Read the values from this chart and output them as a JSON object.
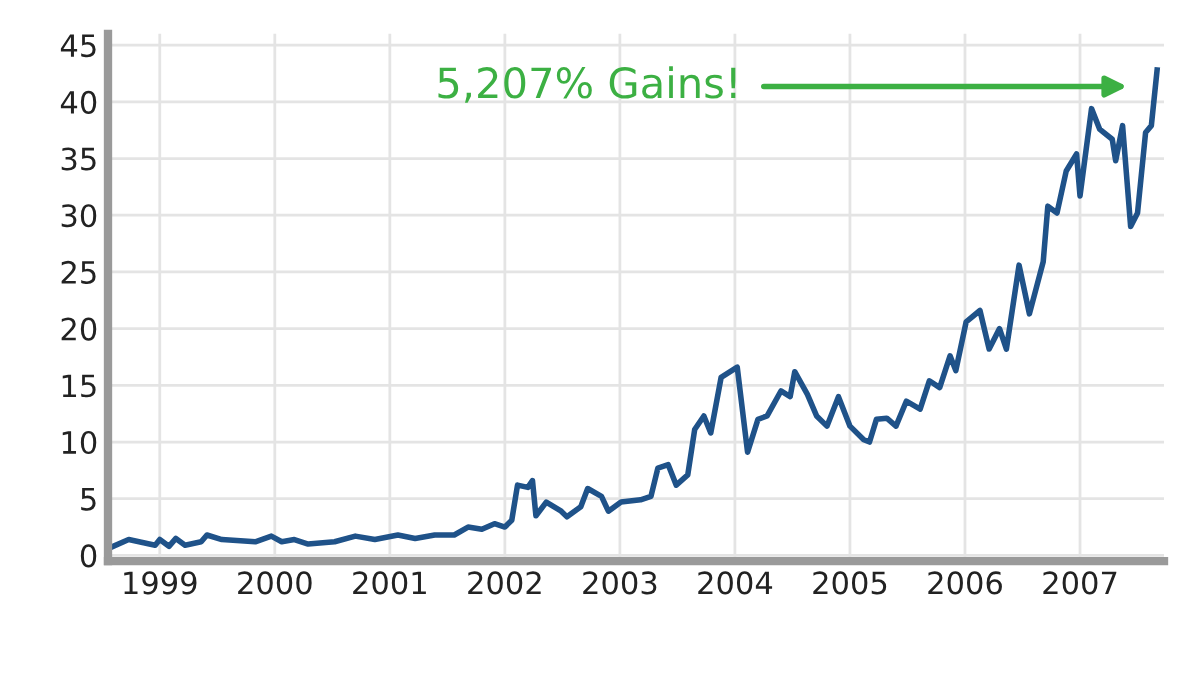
{
  "chart_data": {
    "type": "line",
    "x": [
      1998.55,
      1998.73,
      1998.96,
      1999.0,
      1999.08,
      1999.14,
      1999.22,
      1999.36,
      1999.41,
      1999.54,
      1999.83,
      1999.97,
      2000.06,
      2000.17,
      2000.29,
      2000.52,
      2000.7,
      2000.87,
      2001.07,
      2001.22,
      2001.39,
      2001.56,
      2001.68,
      2001.8,
      2001.91,
      2002.0,
      2002.06,
      2002.11,
      2002.2,
      2002.24,
      2002.27,
      2002.36,
      2002.49,
      2002.54,
      2002.66,
      2002.72,
      2002.84,
      2002.9,
      2003.01,
      2003.18,
      2003.27,
      2003.33,
      2003.42,
      2003.49,
      2003.59,
      2003.65,
      2003.73,
      2003.79,
      2003.88,
      2004.02,
      2004.11,
      2004.2,
      2004.28,
      2004.4,
      2004.48,
      2004.52,
      2004.63,
      2004.71,
      2004.8,
      2004.9,
      2005.0,
      2005.12,
      2005.17,
      2005.23,
      2005.32,
      2005.4,
      2005.49,
      2005.61,
      2005.69,
      2005.78,
      2005.87,
      2005.92,
      2006.01,
      2006.13,
      2006.21,
      2006.3,
      2006.36,
      2006.47,
      2006.56,
      2006.68,
      2006.72,
      2006.8,
      2006.88,
      2006.97,
      2007.0,
      2007.1,
      2007.17,
      2007.28,
      2007.31,
      2007.37,
      2007.44,
      2007.5,
      2007.57,
      2007.62,
      2007.67
    ],
    "series": [
      {
        "color": "#1f5289",
        "values": [
          0.6,
          1.4,
          0.9,
          1.4,
          0.8,
          1.5,
          0.9,
          1.2,
          1.8,
          1.4,
          1.2,
          1.7,
          1.2,
          1.4,
          1.0,
          1.2,
          1.7,
          1.4,
          1.8,
          1.5,
          1.8,
          1.8,
          2.5,
          2.3,
          2.8,
          2.5,
          3.1,
          6.2,
          6.0,
          6.6,
          3.5,
          4.7,
          3.9,
          3.4,
          4.3,
          5.9,
          5.2,
          3.9,
          4.7,
          4.9,
          5.2,
          7.7,
          8.0,
          6.2,
          7.1,
          11.1,
          12.3,
          10.8,
          15.7,
          16.6,
          9.1,
          12.0,
          12.3,
          14.5,
          14.0,
          16.2,
          14.2,
          12.3,
          11.4,
          14.0,
          11.4,
          10.2,
          10.0,
          12.0,
          12.1,
          11.4,
          13.6,
          12.9,
          15.4,
          14.8,
          17.6,
          16.3,
          20.6,
          21.6,
          18.2,
          20.0,
          18.2,
          25.6,
          21.3,
          25.9,
          30.8,
          30.2,
          33.9,
          35.4,
          31.7,
          39.4,
          37.6,
          36.7,
          34.8,
          37.9,
          29.0,
          30.2,
          37.3,
          37.9,
          42.8
        ]
      }
    ],
    "xlim": [
      1998.55,
      2007.73
    ],
    "xticks": [
      1999,
      2000,
      2001,
      2002,
      2003,
      2004,
      2005,
      2006,
      2007
    ],
    "ylim": [
      -0.5,
      46
    ],
    "yticks": [
      0,
      5,
      10,
      15,
      20,
      25,
      30,
      35,
      40,
      45
    ],
    "grid": true,
    "annotations": [
      "5,207% Gains!"
    ]
  }
}
